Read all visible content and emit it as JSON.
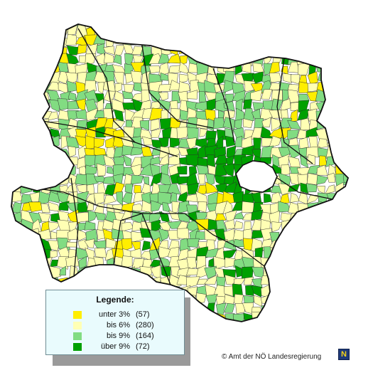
{
  "map": {
    "palette": {
      "unter3": "#ffee00",
      "bis6": "#ffffb4",
      "bis9": "#82dc82",
      "ueber9": "#00a000",
      "outline": "#111111",
      "inner": "#2a2a2a"
    }
  },
  "legend": {
    "title": "Legende:",
    "items": [
      {
        "label": "unter 3%",
        "count": "(57)",
        "color": "#ffee00"
      },
      {
        "label": "bis 6%",
        "count": "(280)",
        "color": "#ffffb4"
      },
      {
        "label": "bis 9%",
        "count": "(164)",
        "color": "#82dc82"
      },
      {
        "label": "über 9%",
        "count": "(72)",
        "color": "#00a000"
      }
    ]
  },
  "footer": {
    "copyright": "© Amt der NÖ Landesregierung",
    "logo_letter": "N"
  }
}
